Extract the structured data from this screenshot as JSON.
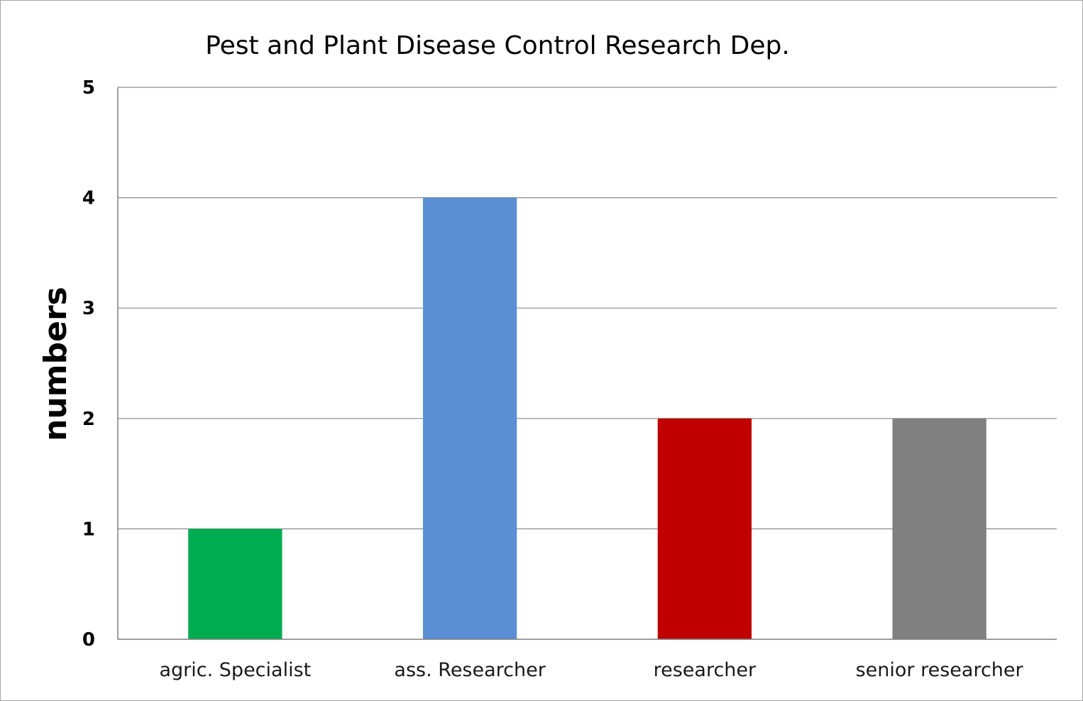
{
  "chart_data": {
    "type": "bar",
    "title": "Pest and Plant Disease Control Research Dep.",
    "xlabel": "",
    "ylabel": "numbers",
    "categories": [
      "agric. Specialist",
      "ass. Researcher",
      "researcher",
      "senior researcher"
    ],
    "values": [
      1,
      4,
      2,
      2
    ],
    "colors": [
      "#00ac50",
      "#5a8fd4",
      "#c00000",
      "#808080"
    ],
    "ylim": [
      0,
      5
    ],
    "yticks": [
      "0",
      "1",
      "2",
      "3",
      "4",
      "5"
    ],
    "grid": true,
    "legend": "none"
  }
}
